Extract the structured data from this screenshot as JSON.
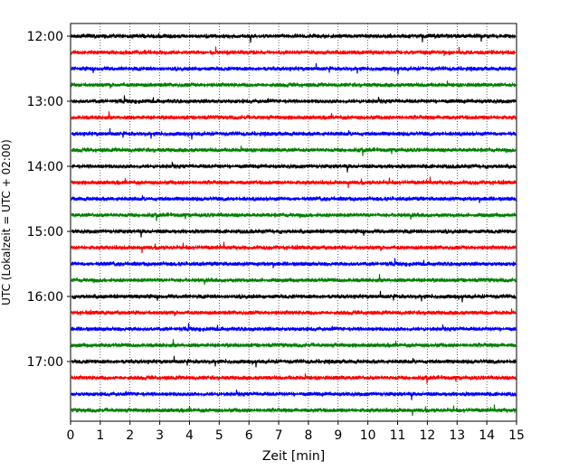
{
  "chart_data": {
    "type": "line",
    "title": "",
    "xlabel": "Zeit  [min]",
    "ylabel": "UTC (Lokalzeit = UTC + 02:00)",
    "xlim": [
      0,
      15
    ],
    "x_ticks": [
      "0",
      "1",
      "2",
      "3",
      "4",
      "5",
      "6",
      "7",
      "8",
      "9",
      "10",
      "11",
      "12",
      "13",
      "14",
      "15"
    ],
    "y_ticks": [
      "12:00",
      "13:00",
      "14:00",
      "15:00",
      "16:00",
      "17:00"
    ],
    "grid_x": true,
    "grid_style": "dotted",
    "trace_interval_min": 15,
    "traces": [
      {
        "start": "12:00",
        "color": "#000000"
      },
      {
        "start": "12:15",
        "color": "#ff0000"
      },
      {
        "start": "12:30",
        "color": "#0000ff"
      },
      {
        "start": "12:45",
        "color": "#008000"
      },
      {
        "start": "13:00",
        "color": "#000000"
      },
      {
        "start": "13:15",
        "color": "#ff0000"
      },
      {
        "start": "13:30",
        "color": "#0000ff"
      },
      {
        "start": "13:45",
        "color": "#008000"
      },
      {
        "start": "14:00",
        "color": "#000000"
      },
      {
        "start": "14:15",
        "color": "#ff0000"
      },
      {
        "start": "14:30",
        "color": "#0000ff"
      },
      {
        "start": "14:45",
        "color": "#008000"
      },
      {
        "start": "15:00",
        "color": "#000000"
      },
      {
        "start": "15:15",
        "color": "#ff0000"
      },
      {
        "start": "15:30",
        "color": "#0000ff"
      },
      {
        "start": "15:45",
        "color": "#008000"
      },
      {
        "start": "16:00",
        "color": "#000000"
      },
      {
        "start": "16:15",
        "color": "#ff0000"
      },
      {
        "start": "16:30",
        "color": "#0000ff"
      },
      {
        "start": "16:45",
        "color": "#008000"
      },
      {
        "start": "17:00",
        "color": "#000000"
      },
      {
        "start": "17:15",
        "color": "#ff0000"
      },
      {
        "start": "17:30",
        "color": "#0000ff"
      },
      {
        "start": "17:45",
        "color": "#008000"
      }
    ]
  }
}
